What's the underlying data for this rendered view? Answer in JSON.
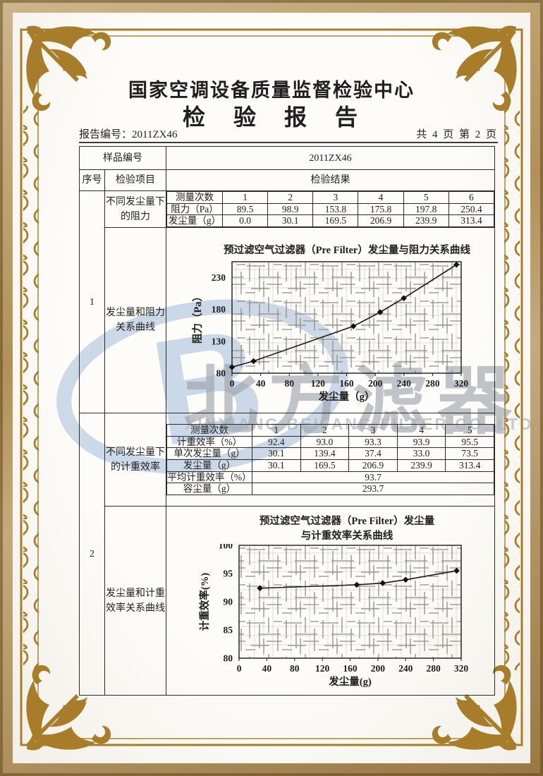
{
  "colors": {
    "frame_gold": "#a87d2a",
    "band_tan": "#b29058",
    "ink": "#1f1f1f",
    "watermark_blue": "#c3d2e4",
    "watermark_gray": "#9ba1a9"
  },
  "header": {
    "org_name": "国家空调设备质量监督检验中心",
    "doc_title": "检　验　报　告",
    "report_no": "报告编号：2011ZX46",
    "page_info": "共 4 页 第 2 页"
  },
  "table": {
    "sample_label": "样品编号",
    "sample_value": "2011ZX46",
    "col_seq": "序号",
    "col_item": "检验项目",
    "col_result": "检验结果",
    "sections": [
      {
        "seq": "1",
        "item_top": "不同发尘量下的阻力",
        "item_bottom": "发尘量和阻力关系曲线",
        "sub": {
          "corner": "测量次数",
          "cols": [
            "1",
            "2",
            "3",
            "4",
            "5",
            "6"
          ],
          "rows": [
            {
              "label": "阻力（Pa）",
              "values": [
                "89.5",
                "98.9",
                "153.8",
                "175.8",
                "197.8",
                "250.4"
              ]
            },
            {
              "label": "发尘量（g）",
              "values": [
                "0.0",
                "30.1",
                "169.5",
                "206.9",
                "239.9",
                "313.4"
              ]
            }
          ],
          "merged": []
        }
      },
      {
        "seq": "2",
        "item_top": "不同发尘量下的计重效率",
        "item_bottom": "发尘量和计重效率关系曲线",
        "sub": {
          "corner": "测量次数",
          "cols": [
            "1",
            "2",
            "3",
            "4",
            "5"
          ],
          "rows": [
            {
              "label": "计重效率（%）",
              "values": [
                "92.4",
                "93.0",
                "93.3",
                "93.9",
                "95.5"
              ]
            },
            {
              "label": "单次发尘量（g）",
              "values": [
                "30.1",
                "139.4",
                "37.4",
                "33.0",
                "73.5"
              ]
            },
            {
              "label": "发尘量（g）",
              "values": [
                "30.1",
                "169.5",
                "206.9",
                "239.9",
                "313.4"
              ]
            }
          ],
          "merged": [
            {
              "label": "平均计重效率（%）",
              "value": "93.7"
            },
            {
              "label": "容尘量（g）",
              "value": "293.7"
            }
          ]
        }
      }
    ]
  },
  "chart_data": [
    {
      "type": "line",
      "title": "预过滤空气过滤器（Pre Filter）发尘量与阻力关系曲线",
      "xlabel": "发尘量（g）",
      "ylabel": "阻力（Pa）",
      "x": [
        0,
        30.1,
        169.5,
        206.9,
        239.9,
        313.4
      ],
      "y": [
        89.5,
        98.9,
        153.8,
        175.8,
        197.8,
        250.4
      ],
      "xlim": [
        0,
        320
      ],
      "ylim": [
        80,
        255
      ],
      "xticks": [
        0,
        40,
        80,
        120,
        160,
        200,
        240,
        280,
        320
      ],
      "yticks": [
        80,
        130,
        180,
        230
      ],
      "grid": true,
      "legend": "none",
      "marker": "diamond"
    },
    {
      "type": "line",
      "title": "预过滤空气过滤器（Pre Filter）发尘量与计重效率关系曲线",
      "title_line1": "预过滤空气过滤器（Pre Filter）发尘量",
      "title_line2": "与计重效率关系曲线",
      "xlabel": "发尘量(g)",
      "ylabel": "计重效率(%)",
      "x": [
        30.1,
        169.5,
        206.9,
        239.9,
        313.4
      ],
      "y": [
        92.4,
        93.0,
        93.3,
        93.9,
        95.5
      ],
      "xlim": [
        0,
        320
      ],
      "ylim": [
        80,
        100
      ],
      "xticks": [
        0,
        40,
        80,
        120,
        160,
        200,
        240,
        280,
        320
      ],
      "yticks": [
        80,
        85,
        90,
        95,
        100
      ],
      "grid": true,
      "legend": "none",
      "marker": "diamond"
    }
  ],
  "watermark": {
    "logo_letter": "B",
    "company_cn": "北方滤器",
    "company_en": "XINXIANG BEIFANG FILTER CO. LTD."
  }
}
